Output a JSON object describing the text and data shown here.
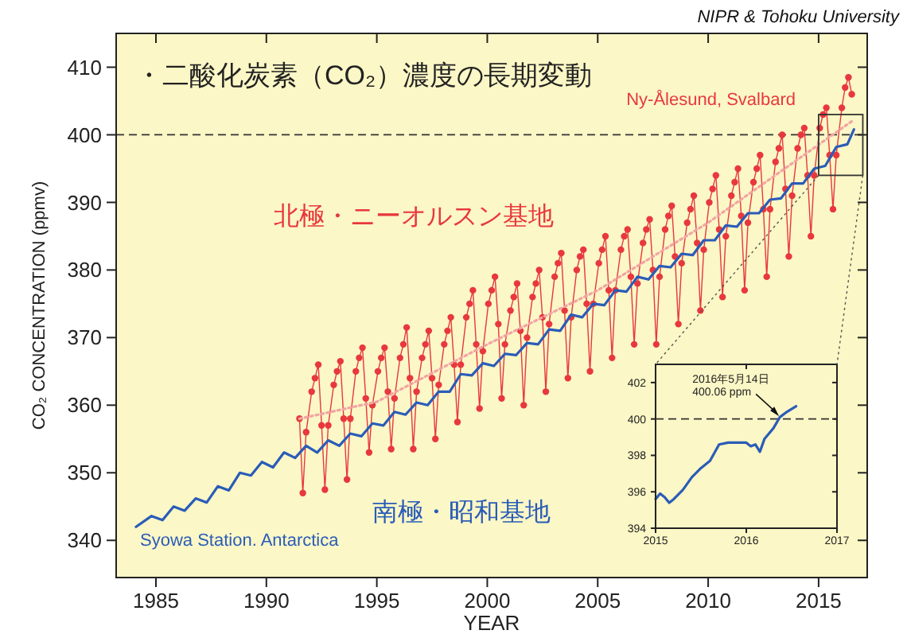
{
  "chart_data": [
    {
      "type": "line",
      "title": "・二酸化炭素（CO₂）濃度の長期変動",
      "xlabel": "YEAR",
      "ylabel": "CO₂ CONCENTRATION (ppmv)",
      "xlim": [
        1983.2,
        2017.2
      ],
      "ylim": [
        334.5,
        415
      ],
      "xticks": [
        1985,
        1990,
        1995,
        2000,
        2005,
        2010,
        2015
      ],
      "yticks": [
        340,
        350,
        360,
        370,
        380,
        390,
        400,
        410
      ],
      "grid": false,
      "legend": false,
      "ref_lines": [
        {
          "axis": "y",
          "value": 400,
          "label": null,
          "color": "#333333",
          "line_style": "dashed"
        }
      ],
      "annotations": [
        "NIPR & Tohoku University",
        "北極・ニーオルスン基地",
        "南極・昭和基地"
      ],
      "series": [
        {
          "name": "Ny-Ålesund, Svalbard",
          "color": "#e8383d",
          "marker": "circle",
          "line_style": "solid",
          "x": [
            1991.5,
            1991.65,
            1991.8,
            1992.05,
            1992.2,
            1992.35,
            1992.5,
            1992.65,
            1992.8,
            1993.05,
            1993.2,
            1993.35,
            1993.5,
            1993.65,
            1993.8,
            1994.05,
            1994.2,
            1994.35,
            1994.5,
            1994.65,
            1994.8,
            1995.05,
            1995.2,
            1995.35,
            1995.5,
            1995.65,
            1995.8,
            1996.05,
            1996.2,
            1996.35,
            1996.5,
            1996.65,
            1996.8,
            1997.05,
            1997.2,
            1997.35,
            1997.5,
            1997.65,
            1997.8,
            1998.05,
            1998.2,
            1998.35,
            1998.5,
            1998.65,
            1998.8,
            1999.05,
            1999.2,
            1999.35,
            1999.5,
            1999.65,
            1999.8,
            2000.05,
            2000.2,
            2000.35,
            2000.5,
            2000.65,
            2000.8,
            2001.05,
            2001.2,
            2001.35,
            2001.5,
            2001.65,
            2001.8,
            2002.05,
            2002.2,
            2002.35,
            2002.5,
            2002.65,
            2002.8,
            2003.05,
            2003.2,
            2003.35,
            2003.5,
            2003.65,
            2003.8,
            2004.05,
            2004.2,
            2004.35,
            2004.5,
            2004.65,
            2004.8,
            2005.05,
            2005.2,
            2005.35,
            2005.5,
            2005.65,
            2005.8,
            2006.05,
            2006.2,
            2006.35,
            2006.5,
            2006.65,
            2006.8,
            2007.05,
            2007.2,
            2007.35,
            2007.5,
            2007.65,
            2007.8,
            2008.05,
            2008.2,
            2008.35,
            2008.5,
            2008.65,
            2008.8,
            2009.05,
            2009.2,
            2009.35,
            2009.5,
            2009.65,
            2009.8,
            2010.05,
            2010.2,
            2010.35,
            2010.5,
            2010.65,
            2010.8,
            2011.05,
            2011.2,
            2011.35,
            2011.5,
            2011.65,
            2011.8,
            2012.05,
            2012.2,
            2012.35,
            2012.5,
            2012.65,
            2012.8,
            2013.05,
            2013.2,
            2013.35,
            2013.5,
            2013.65,
            2013.8,
            2014.05,
            2014.2,
            2014.35,
            2014.5,
            2014.65,
            2014.8,
            2015.05,
            2015.2,
            2015.35,
            2015.5,
            2015.65,
            2015.8,
            2016.05,
            2016.2,
            2016.35,
            2016.5
          ],
          "values": [
            358,
            347,
            356,
            362,
            364,
            366,
            357,
            347.5,
            357,
            363,
            365,
            366.5,
            358,
            349,
            358,
            365,
            367,
            368.5,
            361,
            353,
            360,
            365,
            367,
            368.5,
            362,
            353.5,
            361,
            367,
            369,
            371.5,
            364,
            353.5,
            362,
            367,
            369,
            371,
            364,
            355,
            363,
            369,
            371,
            373,
            366,
            357.5,
            366,
            373,
            375,
            377,
            369,
            359.5,
            368,
            375,
            377,
            379,
            372,
            361,
            369,
            374,
            376,
            378,
            371,
            360,
            370,
            376,
            378,
            380,
            373,
            362,
            372,
            379,
            381,
            382.5,
            374,
            364,
            373,
            380,
            382,
            383,
            375,
            365,
            375,
            381,
            383,
            385,
            377,
            367,
            377,
            383,
            385,
            386,
            379,
            369,
            378,
            384,
            386,
            387.5,
            380,
            369,
            379,
            386,
            388,
            389.5,
            382,
            372,
            381,
            387,
            389,
            391,
            384,
            374,
            383,
            390,
            392,
            394,
            386,
            376,
            385,
            391,
            393,
            395,
            388,
            377,
            387,
            393,
            395,
            397,
            389,
            379,
            389,
            396,
            398,
            400,
            392,
            382,
            391,
            398,
            400,
            401,
            394,
            385,
            394,
            401,
            403,
            404,
            397,
            389,
            397,
            404,
            407,
            408.5,
            406
          ]
        },
        {
          "color": "#f2a4a4",
          "line_style": "dotted",
          "marker": "none",
          "x": [
            1991.5,
            1995,
            2000,
            2005,
            2010,
            2016.5
          ],
          "values": [
            358,
            360.5,
            369,
            377,
            387,
            402
          ]
        },
        {
          "name": "Syowa Station. Antarctica",
          "color": "#2a5cb8",
          "marker": "none",
          "line_style": "solid",
          "x": [
            1984.1,
            1984.8,
            1985.3,
            1985.8,
            1986.3,
            1986.8,
            1987.3,
            1987.8,
            1988.3,
            1988.8,
            1989.3,
            1989.8,
            1990.3,
            1990.8,
            1991.3,
            1991.8,
            1992.3,
            1992.8,
            1993.3,
            1993.8,
            1994.3,
            1994.8,
            1995.3,
            1995.8,
            1996.3,
            1996.8,
            1997.3,
            1997.8,
            1998.3,
            1998.8,
            1999.3,
            1999.8,
            2000.3,
            2000.8,
            2001.3,
            2001.8,
            2002.3,
            2002.8,
            2003.3,
            2003.8,
            2004.3,
            2004.8,
            2005.3,
            2005.8,
            2006.3,
            2006.8,
            2007.3,
            2007.8,
            2008.3,
            2008.8,
            2009.3,
            2009.8,
            2010.3,
            2010.8,
            2011.3,
            2011.8,
            2012.3,
            2012.8,
            2013.3,
            2013.8,
            2014.3,
            2014.8,
            2015.3,
            2015.8,
            2016.3,
            2016.6
          ],
          "values": [
            342,
            343.6,
            343,
            345,
            344.4,
            346.2,
            345.6,
            348,
            347.4,
            350,
            349.6,
            351.6,
            350.8,
            353,
            352.2,
            354,
            353,
            354.8,
            354,
            355.8,
            355.4,
            357.3,
            357,
            359,
            358.6,
            360.4,
            360,
            362,
            362,
            364.6,
            364.4,
            366.2,
            365.8,
            367.6,
            367.4,
            369.2,
            369,
            371.2,
            371,
            373.4,
            373,
            375,
            374.8,
            377,
            376.8,
            379,
            378.6,
            380.6,
            380.4,
            382.4,
            382.2,
            384.4,
            384.4,
            386.6,
            386.4,
            388.4,
            388.4,
            390.4,
            390.6,
            392.8,
            392.8,
            395,
            395.4,
            398.2,
            398.6,
            400.8
          ]
        }
      ]
    },
    {
      "type": "line",
      "xlim": [
        2015,
        2017
      ],
      "ylim": [
        394,
        403
      ],
      "xticks": [
        2015,
        2016,
        2017
      ],
      "yticks": [
        394,
        396,
        398,
        400,
        402
      ],
      "grid": false,
      "legend": false,
      "ref_lines": [
        {
          "axis": "y",
          "value": 400,
          "label": null,
          "color": "#333333",
          "line_style": "dashed"
        }
      ],
      "annotations": [
        {
          "text": "2016年5月14日\n400.06 ppm",
          "x": 2016.37,
          "y": 400.06
        }
      ],
      "series": [
        {
          "color": "#2a5cb8",
          "marker": "none",
          "line_style": "solid",
          "x": [
            2015.0,
            2015.05,
            2015.1,
            2015.15,
            2015.2,
            2015.3,
            2015.4,
            2015.5,
            2015.6,
            2015.7,
            2015.8,
            2015.9,
            2016.0,
            2016.05,
            2016.1,
            2016.15,
            2016.2,
            2016.25,
            2016.3,
            2016.37,
            2016.45,
            2016.55
          ],
          "values": [
            395.6,
            395.9,
            395.7,
            395.4,
            395.6,
            396.1,
            396.8,
            397.3,
            397.7,
            398.6,
            398.7,
            398.7,
            398.7,
            398.5,
            398.6,
            398.2,
            398.9,
            399.2,
            399.5,
            400.1,
            400.4,
            400.7
          ]
        }
      ]
    }
  ]
}
